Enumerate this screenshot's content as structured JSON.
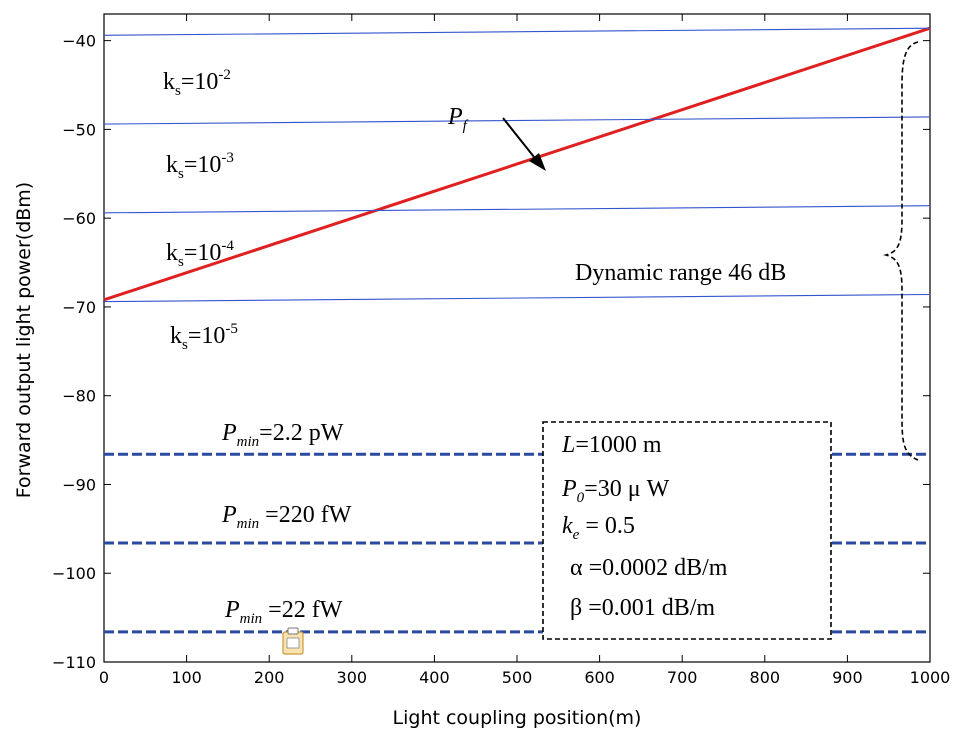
{
  "chart_data": {
    "type": "line",
    "xlabel": "Light coupling position(m)",
    "ylabel": "Forward output light power(dBm)",
    "xlim": [
      0,
      1000
    ],
    "ylim": [
      -110,
      -37
    ],
    "xticks": [
      0,
      100,
      200,
      300,
      400,
      500,
      600,
      700,
      800,
      900,
      1000
    ],
    "yticks": [
      -110,
      -100,
      -90,
      -80,
      -70,
      -60,
      -50,
      -40
    ],
    "grid": false,
    "series": [
      {
        "name": "P_f",
        "color": "#e02020",
        "style": "solid-thick",
        "x": [
          0,
          1000
        ],
        "y": [
          -69.2,
          -38.6
        ]
      },
      {
        "name": "k_s=10^-2",
        "color": "#3355cc",
        "style": "solid",
        "x": [
          0,
          1000
        ],
        "y": [
          -39.4,
          -38.6
        ]
      },
      {
        "name": "k_s=10^-3",
        "color": "#3355cc",
        "style": "solid",
        "x": [
          0,
          1000
        ],
        "y": [
          -49.4,
          -48.6
        ]
      },
      {
        "name": "k_s=10^-4",
        "color": "#3355cc",
        "style": "solid",
        "x": [
          0,
          1000
        ],
        "y": [
          -59.4,
          -58.6
        ]
      },
      {
        "name": "k_s=10^-5",
        "color": "#3355cc",
        "style": "solid",
        "x": [
          0,
          1000
        ],
        "y": [
          -69.4,
          -68.6
        ]
      },
      {
        "name": "P_min=2.2 pW",
        "color": "#2a4aa0",
        "style": "dashed",
        "x": [
          0,
          1000
        ],
        "y": [
          -86.6,
          -86.6
        ]
      },
      {
        "name": "P_min=220 fW",
        "color": "#2a4aa0",
        "style": "dashed",
        "x": [
          0,
          1000
        ],
        "y": [
          -96.6,
          -96.6
        ]
      },
      {
        "name": "P_min=22 fW",
        "color": "#2a4aa0",
        "style": "dashed",
        "x": [
          0,
          1000
        ],
        "y": [
          -106.6,
          -106.6
        ]
      }
    ],
    "annotations": {
      "ks": [
        {
          "base": "k",
          "sub": "s",
          "mid": "=10",
          "exp": "-2"
        },
        {
          "base": "k",
          "sub": "s",
          "mid": "=10",
          "exp": "-3"
        },
        {
          "base": "k",
          "sub": "s",
          "mid": "=10",
          "exp": "-4"
        },
        {
          "base": "k",
          "sub": "s",
          "mid": "=10",
          "exp": "-5"
        }
      ],
      "pmin": [
        {
          "base": "P",
          "sub": "min",
          "rest": "=2.2 pW"
        },
        {
          "base": "P",
          "sub": "min",
          "rest": " =220 fW"
        },
        {
          "base": "P",
          "sub": "min",
          "rest": " =22 fW"
        }
      ],
      "pf": {
        "base": "P",
        "sub": "f"
      },
      "dynamic_range": "Dynamic range 46 dB",
      "params": {
        "L_base": "L",
        "L_rest": "=1000 m",
        "P0_base": "P",
        "P0_sub": "0",
        "P0_rest": "=30 μ W",
        "ke_base": "k",
        "ke_sub": "e",
        "ke_rest": " = 0.5",
        "alpha": "α =0.0002 dB/m",
        "beta": "β =0.001 dB/m"
      }
    }
  }
}
